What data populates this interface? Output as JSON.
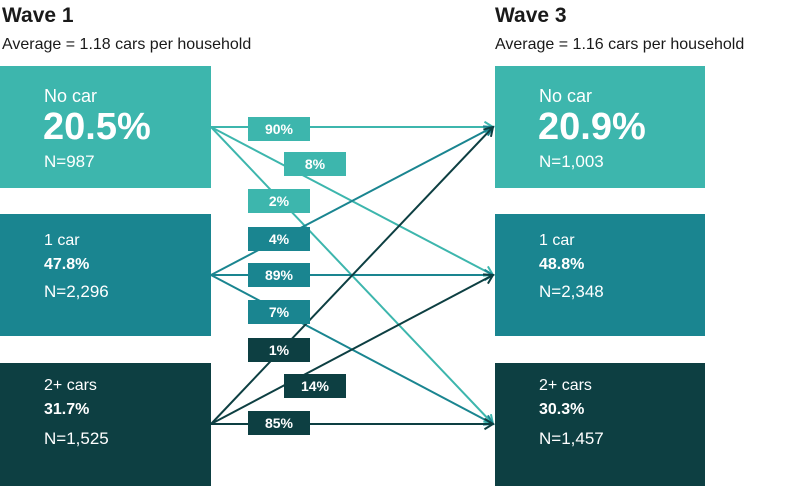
{
  "wave1": {
    "title": "Wave 1",
    "subtitle": "Average = 1.18 cars per household",
    "boxes": [
      {
        "label": "No car",
        "percent": "20.5%",
        "n": "N=987"
      },
      {
        "label": "1 car",
        "percent": "47.8%",
        "n": "N=2,296"
      },
      {
        "label": "2+ cars",
        "percent": "31.7%",
        "n": "N=1,525"
      }
    ]
  },
  "wave3": {
    "title": "Wave 3",
    "subtitle": "Average = 1.16 cars per household",
    "boxes": [
      {
        "label": "No car",
        "percent": "20.9%",
        "n": "N=1,003"
      },
      {
        "label": "1 car",
        "percent": "48.8%",
        "n": "N=2,348"
      },
      {
        "label": "2+ cars",
        "percent": "30.3%",
        "n": "N=1,457"
      }
    ]
  },
  "colors": {
    "no_car": "#3db6ad",
    "one_car": "#1a8590",
    "two_plus": "#0d3f42"
  },
  "transitions": [
    {
      "from": "No car",
      "to": "No car",
      "label": "90%"
    },
    {
      "from": "No car",
      "to": "1 car",
      "label": "8%"
    },
    {
      "from": "No car",
      "to": "2+ cars",
      "label": "2%"
    },
    {
      "from": "1 car",
      "to": "No car",
      "label": "4%"
    },
    {
      "from": "1 car",
      "to": "1 car",
      "label": "89%"
    },
    {
      "from": "1 car",
      "to": "2+ cars",
      "label": "7%"
    },
    {
      "from": "2+ cars",
      "to": "No car",
      "label": "1%"
    },
    {
      "from": "2+ cars",
      "to": "1 car",
      "label": "14%"
    },
    {
      "from": "2+ cars",
      "to": "2+ cars",
      "label": "85%"
    }
  ]
}
